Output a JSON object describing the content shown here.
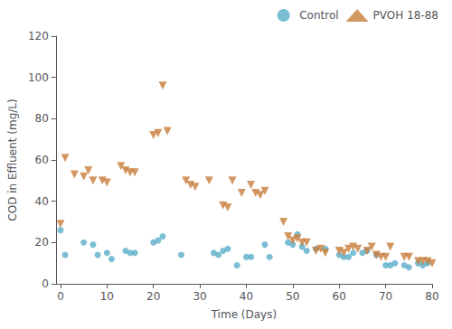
{
  "chart_data": {
    "type": "scatter",
    "xlabel": "Time (Days)",
    "ylabel": "COD in Effluent (mg/L)",
    "xlim": [
      -1,
      80
    ],
    "ylim": [
      0,
      120
    ],
    "xticks": [
      0,
      10,
      20,
      30,
      40,
      50,
      60,
      70,
      80
    ],
    "yticks": [
      0,
      20,
      40,
      60,
      80,
      100,
      120
    ],
    "grid": false,
    "legend": "upper right",
    "series": [
      {
        "name": "Control",
        "color": "#5aaec8",
        "marker": "circle",
        "x": [
          0,
          1,
          5,
          7,
          8,
          10,
          11,
          14,
          15,
          16,
          20,
          21,
          22,
          26,
          33,
          34,
          35,
          36,
          38,
          40,
          41,
          44,
          45,
          49,
          50,
          51,
          52,
          53,
          55,
          57,
          60,
          61,
          62,
          63,
          65,
          66,
          68,
          70,
          71,
          72,
          74,
          75,
          77,
          78,
          79
        ],
        "values": [
          26,
          14,
          20,
          19,
          14,
          15,
          12,
          16,
          15,
          15,
          20,
          21,
          23,
          14,
          15,
          14,
          16,
          17,
          9,
          13,
          13,
          19,
          13,
          20,
          19,
          24,
          18,
          16,
          17,
          17,
          14,
          13,
          13,
          15,
          15,
          16,
          14,
          9,
          9,
          10,
          9,
          8,
          10,
          9,
          10
        ]
      },
      {
        "name": "PVOH 18-88",
        "color": "#c87d3a",
        "marker": "triangle_down",
        "x": [
          0,
          1,
          3,
          5,
          6,
          7,
          9,
          10,
          13,
          14,
          15,
          16,
          20,
          21,
          22,
          23,
          27,
          28,
          29,
          32,
          35,
          36,
          37,
          39,
          41,
          42,
          43,
          44,
          48,
          49,
          50,
          51,
          52,
          53,
          55,
          56,
          57,
          60,
          61,
          62,
          63,
          64,
          66,
          67,
          68,
          69,
          70,
          71,
          74,
          75,
          77,
          78,
          79,
          80
        ],
        "values": [
          29,
          61,
          53,
          52,
          55,
          50,
          50,
          49,
          57,
          55,
          54,
          54,
          72,
          73,
          96,
          74,
          50,
          48,
          47,
          50,
          38,
          37,
          50,
          44,
          48,
          44,
          43,
          45,
          30,
          23,
          21,
          22,
          20,
          20,
          16,
          17,
          15,
          16,
          15,
          17,
          18,
          17,
          16,
          18,
          14,
          13,
          13,
          18,
          13,
          13,
          11,
          11,
          11,
          10
        ]
      }
    ]
  }
}
